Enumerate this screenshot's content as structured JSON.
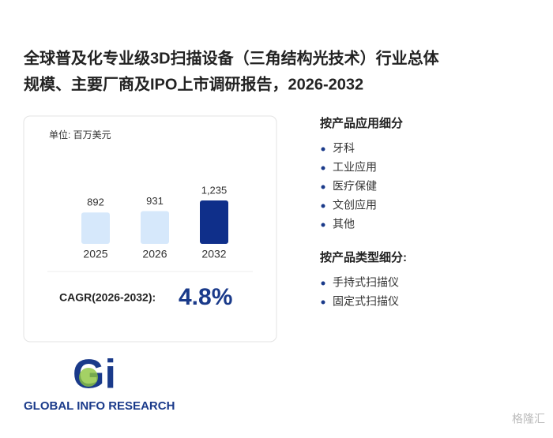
{
  "title_lines": [
    "全球普及化专业级3D扫描设备（三角结构光技术）行业总体",
    "规模、主要厂商及IPO上市调研报告，2026-2032"
  ],
  "chart_data": {
    "type": "bar",
    "unit": "单位: 百万美元",
    "categories": [
      "2025",
      "2026",
      "2032"
    ],
    "values": [
      892,
      931,
      1235
    ],
    "value_labels": [
      "892",
      "931",
      "1,235"
    ],
    "colors": [
      "#d6e8fb",
      "#d6e8fb",
      "#0f2f8a"
    ]
  },
  "cagr": {
    "label": "CAGR(2026-2032):",
    "value": "4.8%"
  },
  "segments": [
    {
      "heading": "按产品应用细分",
      "items": [
        "牙科",
        "工业应用",
        "医疗保健",
        "文创应用",
        "其他"
      ]
    },
    {
      "heading": "按产品类型细分:",
      "items": [
        "手持式扫描仪",
        "固定式扫描仪"
      ]
    }
  ],
  "logo": {
    "mark": "Gi",
    "name": "GLOBAL INFO RESEARCH"
  },
  "watermark": "格隆汇"
}
